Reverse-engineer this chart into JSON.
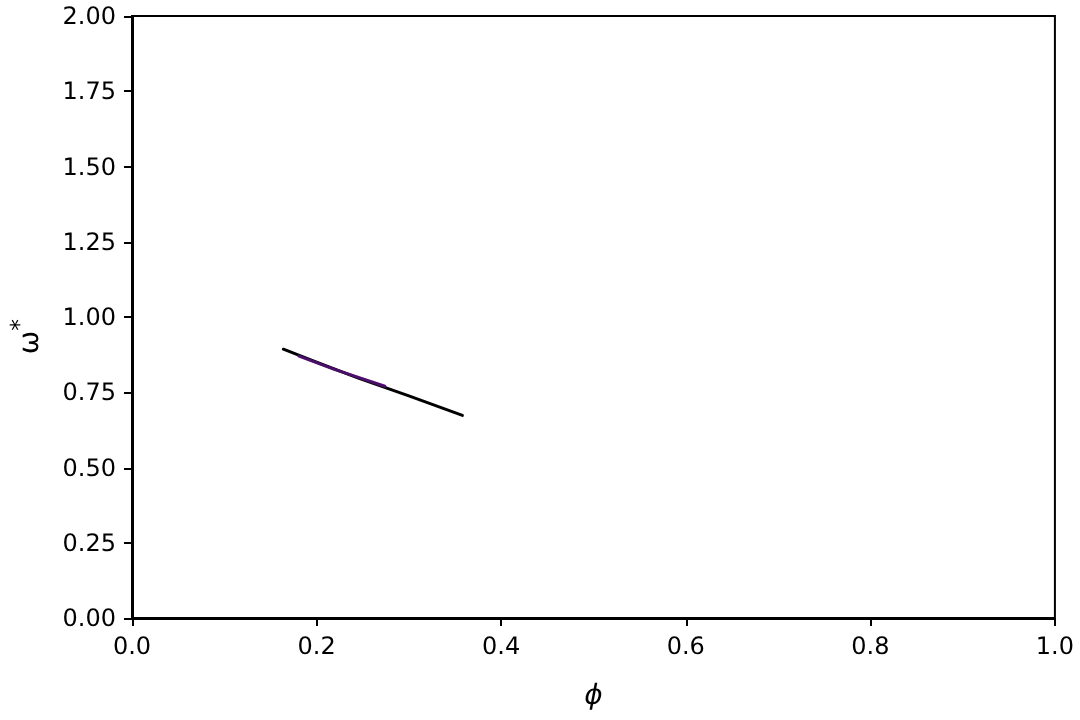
{
  "chart_data": {
    "type": "line",
    "xlabel": "ϕ",
    "ylabel": "ω$^{*}$",
    "series": [
      {
        "color": "#000000",
        "x": [
          0.164,
          0.2,
          0.246,
          0.3,
          0.358
        ],
        "values": [
          0.893,
          0.85,
          0.796,
          0.738,
          0.673
        ]
      },
      {
        "color": "#4b0f6b",
        "x": [
          0.181,
          0.22,
          0.274
        ],
        "values": [
          0.87,
          0.825,
          0.77
        ]
      }
    ],
    "xlim": [
      0,
      1
    ],
    "ylim": [
      0,
      2
    ],
    "xticks": [
      {
        "value": 0,
        "label": "0.0"
      },
      {
        "value": 0.2,
        "label": "0.2"
      },
      {
        "value": 0.4,
        "label": "0.4"
      },
      {
        "value": 0.6,
        "label": "0.6"
      },
      {
        "value": 0.8,
        "label": "0.8"
      },
      {
        "value": 1,
        "label": "1.0"
      }
    ],
    "yticks": [
      {
        "value": 0,
        "label": "0.00"
      },
      {
        "value": 0.25,
        "label": "0.25"
      },
      {
        "value": 0.5,
        "label": "0.50"
      },
      {
        "value": 0.75,
        "label": "0.75"
      },
      {
        "value": 1,
        "label": "1.00"
      },
      {
        "value": 1.25,
        "label": "1.25"
      },
      {
        "value": 1.5,
        "label": "1.50"
      },
      {
        "value": 1.75,
        "label": "1.75"
      },
      {
        "value": 2,
        "label": "2.00"
      }
    ],
    "grid": false,
    "marker": "none",
    "line_style": "solid"
  }
}
